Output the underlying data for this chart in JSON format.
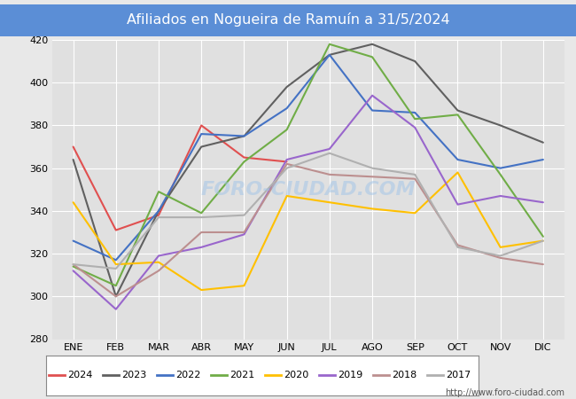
{
  "title": "Afiliados en Nogueira de Ramuín a 31/5/2024",
  "ylim": [
    280,
    420
  ],
  "xlim": [
    -0.5,
    11.5
  ],
  "months": [
    "ENE",
    "FEB",
    "MAR",
    "ABR",
    "MAY",
    "JUN",
    "JUL",
    "AGO",
    "SEP",
    "OCT",
    "NOV",
    "DIC"
  ],
  "yticks": [
    280,
    300,
    320,
    340,
    360,
    380,
    400,
    420
  ],
  "background_color": "#e8e8e8",
  "plot_bg_color": "#e0e0e0",
  "header_color": "#5b8ed6",
  "watermark": "FORO-CIUDAD.COM",
  "url": "http://www.foro-ciudad.com",
  "series": {
    "2024": {
      "color": "#e05050",
      "data": [
        370,
        331,
        338,
        380,
        365,
        363,
        null,
        null,
        null,
        null,
        null,
        null
      ]
    },
    "2023": {
      "color": "#606060",
      "data": [
        364,
        300,
        340,
        370,
        375,
        398,
        413,
        418,
        410,
        387,
        380,
        372
      ]
    },
    "2022": {
      "color": "#4472c4",
      "data": [
        326,
        317,
        340,
        376,
        375,
        388,
        413,
        387,
        386,
        364,
        360,
        364
      ]
    },
    "2021": {
      "color": "#70ad47",
      "data": [
        314,
        305,
        349,
        339,
        363,
        378,
        418,
        412,
        383,
        385,
        357,
        328
      ]
    },
    "2020": {
      "color": "#ffc000",
      "data": [
        344,
        315,
        316,
        303,
        305,
        347,
        344,
        341,
        339,
        358,
        323,
        326
      ]
    },
    "2019": {
      "color": "#9966cc",
      "data": [
        312,
        294,
        319,
        323,
        329,
        364,
        369,
        394,
        379,
        343,
        347,
        344
      ]
    },
    "2018": {
      "color": "#bc8f8f",
      "data": [
        315,
        300,
        312,
        330,
        330,
        362,
        357,
        356,
        355,
        324,
        318,
        315
      ]
    },
    "2017": {
      "color": "#b0b0b0",
      "data": [
        315,
        313,
        337,
        337,
        338,
        360,
        367,
        360,
        357,
        323,
        319,
        326
      ]
    }
  },
  "legend_order": [
    "2024",
    "2023",
    "2022",
    "2021",
    "2020",
    "2019",
    "2018",
    "2017"
  ]
}
